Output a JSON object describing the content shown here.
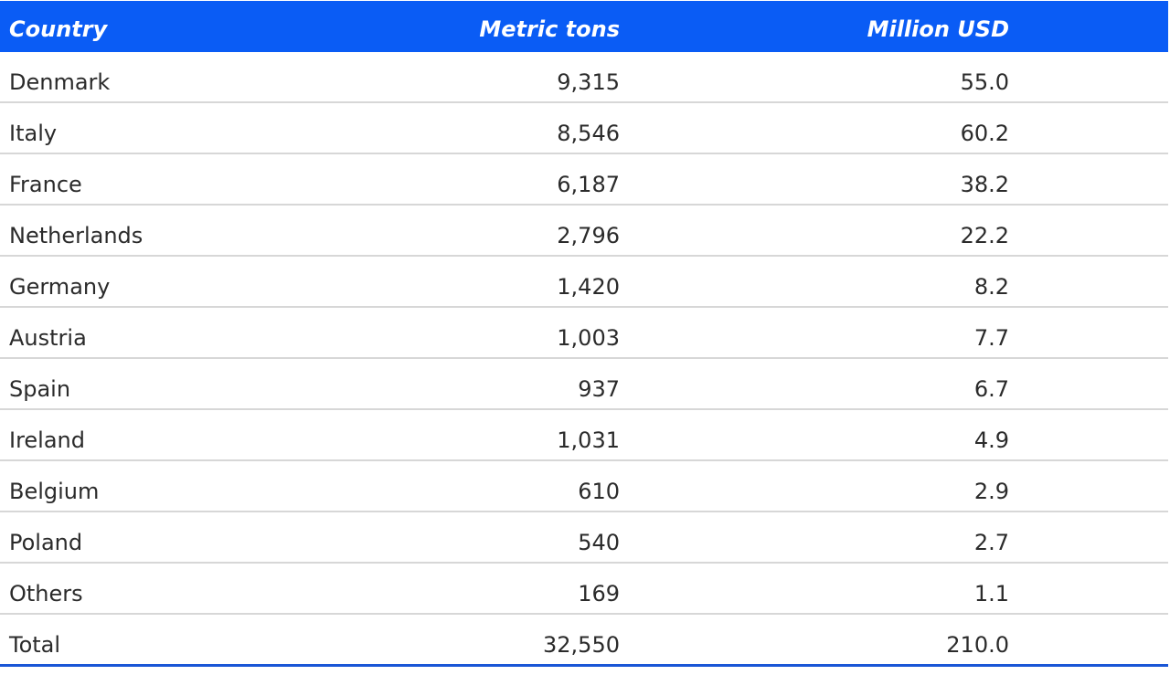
{
  "table": {
    "headers": {
      "country": "Country",
      "metric_tons": "Metric tons",
      "million_usd": "Million USD"
    },
    "rows": [
      {
        "country": "Denmark",
        "metric_tons": "9,315",
        "million_usd": "55.0"
      },
      {
        "country": "Italy",
        "metric_tons": "8,546",
        "million_usd": "60.2"
      },
      {
        "country": "France",
        "metric_tons": "6,187",
        "million_usd": "38.2"
      },
      {
        "country": "Netherlands",
        "metric_tons": "2,796",
        "million_usd": "22.2"
      },
      {
        "country": "Germany",
        "metric_tons": "1,420",
        "million_usd": "8.2"
      },
      {
        "country": "Austria",
        "metric_tons": "1,003",
        "million_usd": "7.7"
      },
      {
        "country": "Spain",
        "metric_tons": "937",
        "million_usd": "6.7"
      },
      {
        "country": "Ireland",
        "metric_tons": "1,031",
        "million_usd": "4.9"
      },
      {
        "country": "Belgium",
        "metric_tons": "610",
        "million_usd": "2.9"
      },
      {
        "country": "Poland",
        "metric_tons": "540",
        "million_usd": "2.7"
      },
      {
        "country": "Others",
        "metric_tons": "169",
        "million_usd": "1.1"
      },
      {
        "country": "Total",
        "metric_tons": "32,550",
        "million_usd": "210.0"
      }
    ]
  },
  "colors": {
    "header_background": "#0a5cf5",
    "header_text": "#ffffff",
    "row_divider": "#d7d7d7",
    "bottom_rule": "#1a56d6"
  }
}
